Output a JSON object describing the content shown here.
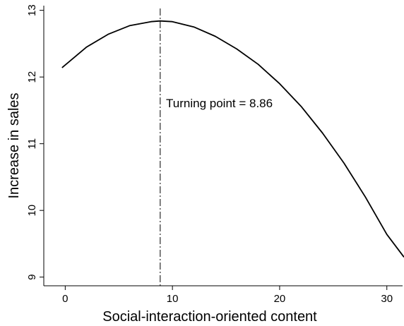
{
  "chart_data": {
    "type": "line",
    "title": "",
    "xlabel": "Social-interaction-oriented content",
    "ylabel": "Increase in sales",
    "xlim": [
      -2,
      31.6
    ],
    "ylim": [
      8.87,
      13.07
    ],
    "x_ticks": [
      0,
      10,
      20,
      30
    ],
    "y_ticks": [
      9,
      10,
      11,
      12,
      13
    ],
    "grid": false,
    "legend": "none",
    "series": [
      {
        "x": [
          -0.3,
          2,
          4,
          6,
          8,
          8.86,
          10,
          12,
          14,
          16,
          18,
          20,
          22,
          24,
          26,
          28,
          30,
          31.6
        ],
        "y": [
          12.14,
          12.45,
          12.64,
          12.77,
          12.83,
          12.84,
          12.83,
          12.75,
          12.61,
          12.42,
          12.19,
          11.9,
          11.56,
          11.16,
          10.71,
          10.2,
          9.64,
          9.3
        ],
        "color": "#000000"
      }
    ],
    "vline": {
      "x": 8.86,
      "style": "dash-dot",
      "color": "#000000"
    },
    "annotation": {
      "text": "Turning point = 8.86",
      "x": 9.4,
      "y": 11.61
    }
  }
}
